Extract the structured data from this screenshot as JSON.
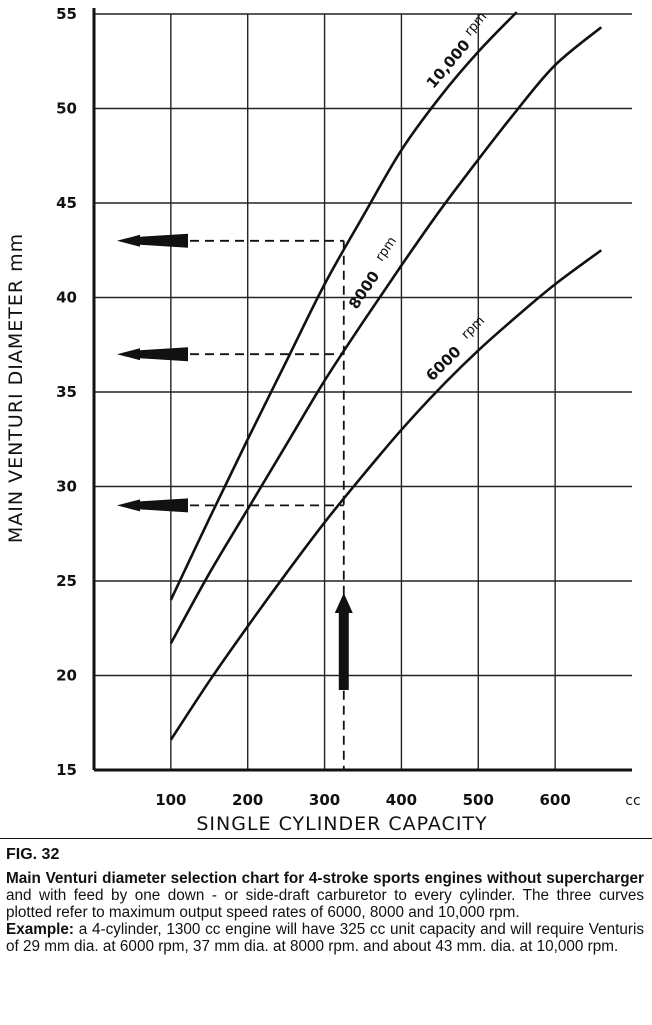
{
  "chart_data": {
    "type": "line",
    "ylabel": "MAIN VENTURI DIAMETER mm",
    "xlabel": "SINGLE CYLINDER CAPACITY",
    "x_unit": "cc",
    "xlim": [
      0,
      700
    ],
    "ylim": [
      15,
      55
    ],
    "x_ticks": [
      100,
      200,
      300,
      400,
      500,
      600
    ],
    "x_tick_labels": [
      "100",
      "200",
      "300",
      "400",
      "500",
      "600"
    ],
    "y_ticks": [
      15,
      20,
      25,
      30,
      35,
      40,
      45,
      50,
      55
    ],
    "y_tick_labels": [
      "15",
      "20",
      "25",
      "30",
      "35",
      "40",
      "45",
      "50",
      "55"
    ],
    "grid": true,
    "series": [
      {
        "name": "10,000 rpm",
        "label_number": "10,000",
        "label_unit": "rpm",
        "x": [
          100,
          150,
          200,
          250,
          300,
          350,
          400,
          450,
          500,
          550
        ],
        "y": [
          24,
          28.3,
          32.5,
          36.6,
          40.7,
          44.3,
          47.8,
          50.6,
          53,
          55.1
        ]
      },
      {
        "name": "8000 rpm",
        "label_number": "8000",
        "label_unit": "rpm",
        "x": [
          100,
          150,
          200,
          250,
          300,
          350,
          400,
          450,
          500,
          550,
          600,
          660
        ],
        "y": [
          21.7,
          25.4,
          28.8,
          32.2,
          35.6,
          38.7,
          41.7,
          44.6,
          47.3,
          49.9,
          52.3,
          54.3
        ]
      },
      {
        "name": "6000 rpm",
        "label_number": "6000",
        "label_unit": "rpm",
        "x": [
          100,
          150,
          200,
          250,
          300,
          350,
          400,
          450,
          500,
          550,
          600,
          660
        ],
        "y": [
          16.6,
          19.7,
          22.6,
          25.4,
          28.1,
          30.6,
          33,
          35.2,
          37.2,
          39,
          40.7,
          42.5
        ]
      }
    ],
    "example": {
      "capacity": 325,
      "readings": [
        29,
        37,
        43
      ]
    }
  },
  "caption": {
    "fig_label": "FIG. 32",
    "title_bold": "Main Venturi diameter selection chart for 4-stroke sports engines without supercharger",
    "title_rest": " and with feed by one down - or side-draft carburetor to every cylinder. The three curves plotted refer to maximum output speed rates of 6000, 8000 and 10,000 rpm.",
    "example_label": "Example:",
    "example_text": " a 4-cylinder, 1300 cc engine will have 325 cc unit capacity and will require Venturis of 29 mm dia. at 6000 rpm, 37 mm dia. at 8000 rpm. and about 43 mm. dia. at 10,000 rpm."
  }
}
